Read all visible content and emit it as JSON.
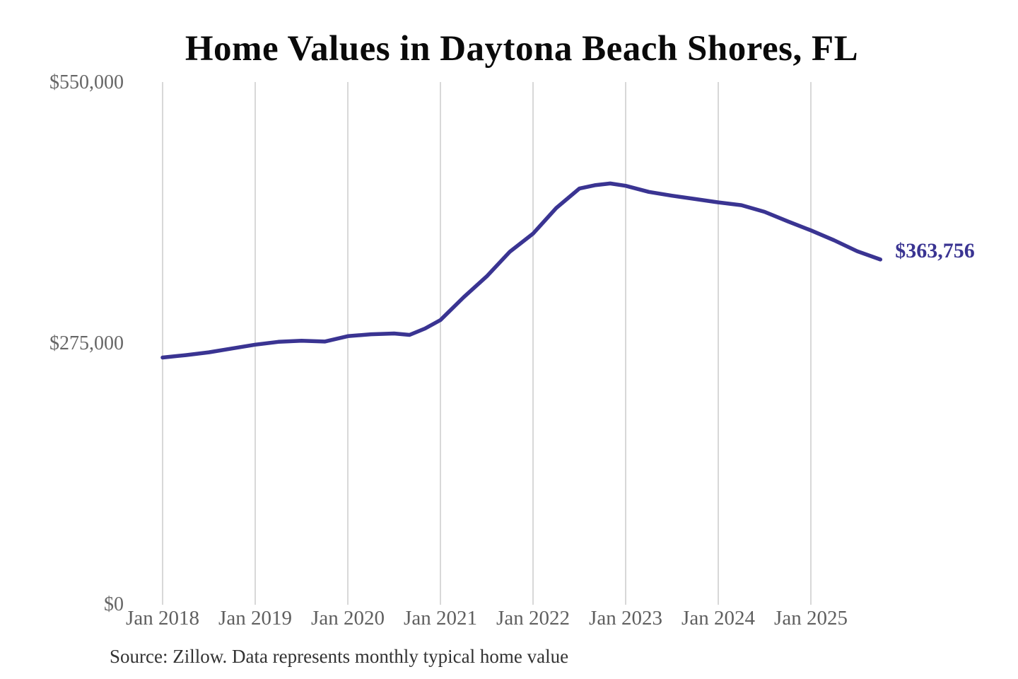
{
  "chart_data": {
    "type": "line",
    "title": "Home Values in Daytona Beach Shores, FL",
    "source_note": "Source: Zillow. Data represents monthly typical home value",
    "end_label": "$363,756",
    "end_value": 363756,
    "ylim": [
      0,
      550000
    ],
    "grid": "vertical-only",
    "colors": {
      "line": "#3a3492",
      "grid": "#cccccc",
      "tick_text": "#666666",
      "title_text": "#0a0a0a"
    },
    "y_ticks": [
      {
        "label": "$550,000",
        "value": 550000
      },
      {
        "label": "$275,000",
        "value": 275000
      },
      {
        "label": "$0",
        "value": 0
      }
    ],
    "x_ticks": [
      {
        "label": "Jan 2018",
        "year": 2018
      },
      {
        "label": "Jan 2019",
        "year": 2019
      },
      {
        "label": "Jan 2020",
        "year": 2020
      },
      {
        "label": "Jan 2021",
        "year": 2021
      },
      {
        "label": "Jan 2022",
        "year": 2022
      },
      {
        "label": "Jan 2023",
        "year": 2023
      },
      {
        "label": "Jan 2024",
        "year": 2024
      },
      {
        "label": "Jan 2025",
        "year": 2025
      }
    ],
    "series": [
      {
        "name": "Monthly typical home value",
        "color": "#3a3492",
        "points": [
          {
            "month": "2018-01",
            "value": 260500
          },
          {
            "month": "2018-04",
            "value": 263000
          },
          {
            "month": "2018-07",
            "value": 266000
          },
          {
            "month": "2018-10",
            "value": 270000
          },
          {
            "month": "2019-01",
            "value": 274000
          },
          {
            "month": "2019-04",
            "value": 277000
          },
          {
            "month": "2019-07",
            "value": 278200
          },
          {
            "month": "2019-10",
            "value": 277300
          },
          {
            "month": "2020-01",
            "value": 283000
          },
          {
            "month": "2020-04",
            "value": 285000
          },
          {
            "month": "2020-07",
            "value": 285800
          },
          {
            "month": "2020-09",
            "value": 284300
          },
          {
            "month": "2020-11",
            "value": 291000
          },
          {
            "month": "2021-01",
            "value": 300000
          },
          {
            "month": "2021-04",
            "value": 324000
          },
          {
            "month": "2021-07",
            "value": 346000
          },
          {
            "month": "2021-10",
            "value": 372000
          },
          {
            "month": "2022-01",
            "value": 391000
          },
          {
            "month": "2022-04",
            "value": 418000
          },
          {
            "month": "2022-07",
            "value": 438500
          },
          {
            "month": "2022-09",
            "value": 442000
          },
          {
            "month": "2022-11",
            "value": 443900
          },
          {
            "month": "2023-01",
            "value": 441400
          },
          {
            "month": "2023-04",
            "value": 435000
          },
          {
            "month": "2023-07",
            "value": 431000
          },
          {
            "month": "2023-10",
            "value": 427500
          },
          {
            "month": "2024-01",
            "value": 424000
          },
          {
            "month": "2024-04",
            "value": 421000
          },
          {
            "month": "2024-07",
            "value": 414000
          },
          {
            "month": "2024-10",
            "value": 404000
          },
          {
            "month": "2025-01",
            "value": 394500
          },
          {
            "month": "2025-04",
            "value": 384000
          },
          {
            "month": "2025-07",
            "value": 372500
          },
          {
            "month": "2025-10",
            "value": 363756
          }
        ]
      }
    ]
  }
}
